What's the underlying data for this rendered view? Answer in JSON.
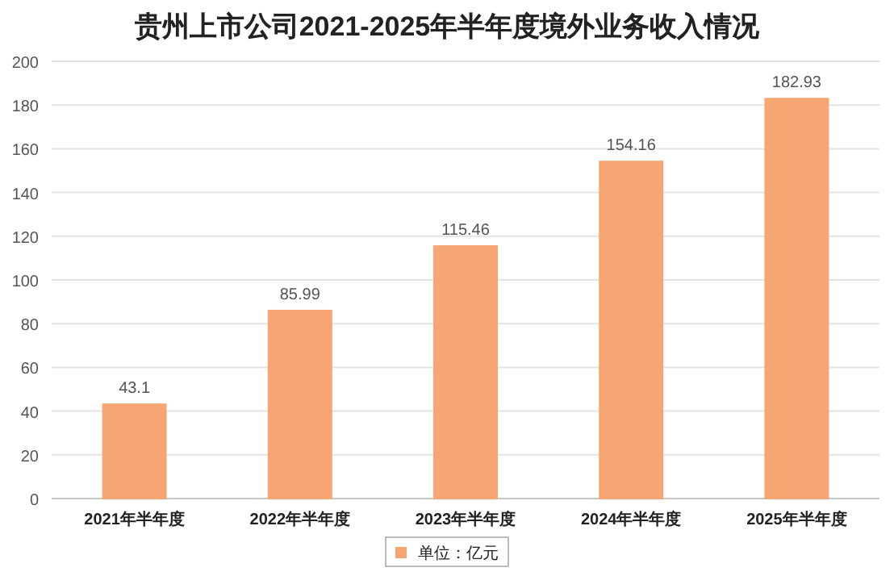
{
  "chart_data": {
    "type": "bar",
    "title": "贵州上市公司2021-2025年半年度境外业务收入情况",
    "categories": [
      "2021年半年度",
      "2022年半年度",
      "2023年半年度",
      "2024年半年度",
      "2025年半年度"
    ],
    "series": [
      {
        "name": "单位：亿元",
        "color": "#f5a672",
        "values": [
          43.1,
          85.99,
          115.46,
          154.16,
          182.93
        ]
      }
    ],
    "ylim": [
      0,
      200
    ],
    "yticks": [
      0,
      20,
      40,
      60,
      80,
      100,
      120,
      140,
      160,
      180,
      200
    ],
    "grid": "y",
    "legend": "bottom",
    "data_labels": true
  }
}
